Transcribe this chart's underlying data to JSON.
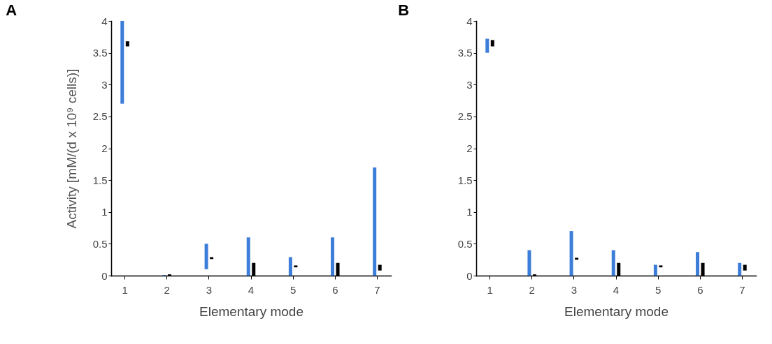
{
  "chart_data": [
    {
      "type": "bar",
      "title": "A",
      "xlabel": "Elementary mode",
      "ylabel": "Activity   [mM/(d x 10⁹ cells)]",
      "categories": [
        "1",
        "2",
        "3",
        "4",
        "5",
        "6",
        "7"
      ],
      "ylim": [
        0,
        4
      ],
      "yticks": [
        0,
        0.5,
        1,
        1.5,
        2,
        2.5,
        3,
        3.5,
        4
      ],
      "series": [
        {
          "color": "#3c7dd9",
          "base": [
            2.7,
            0,
            0.1,
            0,
            0,
            0,
            0
          ],
          "values": [
            1.3,
            0.01,
            0.4,
            0.6,
            0.29,
            0.6,
            1.7
          ]
        },
        {
          "color": "#000000",
          "base": [
            3.6,
            0,
            0.26,
            0,
            0.13,
            0,
            0.08
          ],
          "values": [
            0.08,
            0.02,
            0.03,
            0.2,
            0.03,
            0.2,
            0.09
          ]
        }
      ]
    },
    {
      "type": "bar",
      "title": "B",
      "xlabel": "Elementary mode",
      "categories": [
        "1",
        "2",
        "3",
        "4",
        "5",
        "6",
        "7"
      ],
      "ylim": [
        0,
        4
      ],
      "yticks": [
        0,
        0.5,
        1,
        1.5,
        2,
        2.5,
        3,
        3.5,
        4
      ],
      "series": [
        {
          "color": "#3c7dd9",
          "base": [
            3.5,
            0,
            0,
            0,
            0,
            0,
            0
          ],
          "values": [
            0.22,
            0.4,
            0.7,
            0.4,
            0.17,
            0.37,
            0.2
          ]
        },
        {
          "color": "#000000",
          "base": [
            3.6,
            0,
            0.25,
            0,
            0.13,
            0,
            0.08
          ],
          "values": [
            0.1,
            0.02,
            0.03,
            0.2,
            0.03,
            0.2,
            0.09
          ]
        }
      ]
    }
  ]
}
